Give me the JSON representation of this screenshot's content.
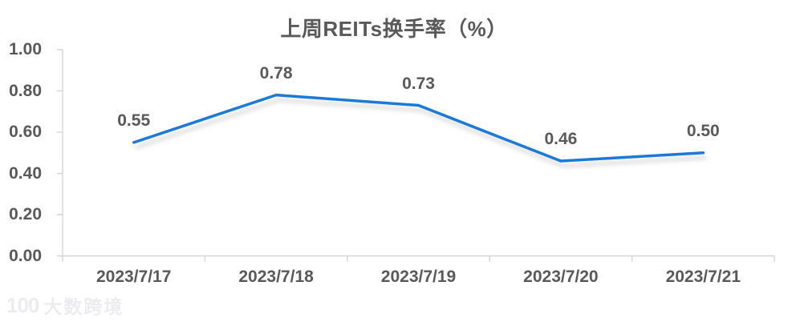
{
  "title": "上周REITs换手率（%）",
  "colors": {
    "line": "#1b7ad8",
    "label_text": "#595959",
    "axis": "#d6d6d6",
    "background": "#ffffff"
  },
  "watermark": {
    "logo": "100",
    "brand": "大数跨境"
  },
  "chart_data": {
    "type": "line",
    "title": "上周REITs换手率（%）",
    "categories": [
      "2023/7/17",
      "2023/7/18",
      "2023/7/19",
      "2023/7/20",
      "2023/7/21"
    ],
    "values": [
      0.55,
      0.78,
      0.73,
      0.46,
      0.5
    ],
    "data_labels": [
      "0.55",
      "0.78",
      "0.73",
      "0.46",
      "0.50"
    ],
    "xlabel": "",
    "ylabel": "",
    "ylim": [
      0.0,
      1.0
    ],
    "y_tick_labels": [
      "1.00",
      "0.80",
      "0.60",
      "0.40",
      "0.20",
      "0.00"
    ],
    "y_tick_values": [
      1.0,
      0.8,
      0.6,
      0.4,
      0.2,
      0.0
    ],
    "grid": false,
    "legend_position": "none",
    "series_color": "#1b7ad8"
  }
}
